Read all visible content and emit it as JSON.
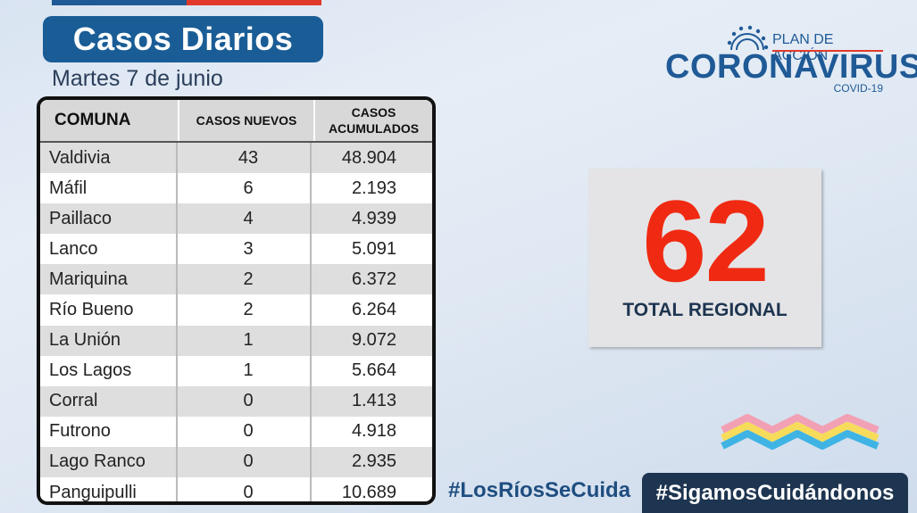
{
  "header": {
    "title": "Casos Diarios",
    "date": "Martes 7 de junio"
  },
  "logo": {
    "plan": "PLAN DE ACCIÓN",
    "main": "CORONAVIRUS",
    "sub": "COVID-19"
  },
  "table": {
    "headers": {
      "comuna": "COMUNA",
      "nuevos": "CASOS NUEVOS",
      "acumulados_1": "CASOS",
      "acumulados_2": "ACUMULADOS"
    },
    "rows": [
      {
        "comuna": "Valdivia",
        "nuevos": "43",
        "acumulados": "48.904"
      },
      {
        "comuna": "Máfil",
        "nuevos": "6",
        "acumulados": "2.193"
      },
      {
        "comuna": "Paillaco",
        "nuevos": "4",
        "acumulados": "4.939"
      },
      {
        "comuna": "Lanco",
        "nuevos": "3",
        "acumulados": "5.091"
      },
      {
        "comuna": "Mariquina",
        "nuevos": "2",
        "acumulados": "6.372"
      },
      {
        "comuna": "Río Bueno",
        "nuevos": "2",
        "acumulados": "6.264"
      },
      {
        "comuna": "La Unión",
        "nuevos": "1",
        "acumulados": "9.072"
      },
      {
        "comuna": "Los Lagos",
        "nuevos": "1",
        "acumulados": "5.664"
      },
      {
        "comuna": "Corral",
        "nuevos": "0",
        "acumulados": "1.413"
      },
      {
        "comuna": "Futrono",
        "nuevos": "0",
        "acumulados": "4.918"
      },
      {
        "comuna": "Lago Ranco",
        "nuevos": "0",
        "acumulados": "2.935"
      },
      {
        "comuna": "Panguipulli",
        "nuevos": "0",
        "acumulados": "10.689"
      }
    ]
  },
  "total": {
    "value": "62",
    "label": "TOTAL REGIONAL"
  },
  "hashtags": {
    "first": "#LosRíosSeCuida",
    "second": "#SigamosCuidándonos"
  },
  "colors": {
    "brand_blue": "#1a5d96",
    "accent_red": "#e23a2a",
    "total_red": "#f02a12",
    "dark_navy": "#1d3550"
  }
}
